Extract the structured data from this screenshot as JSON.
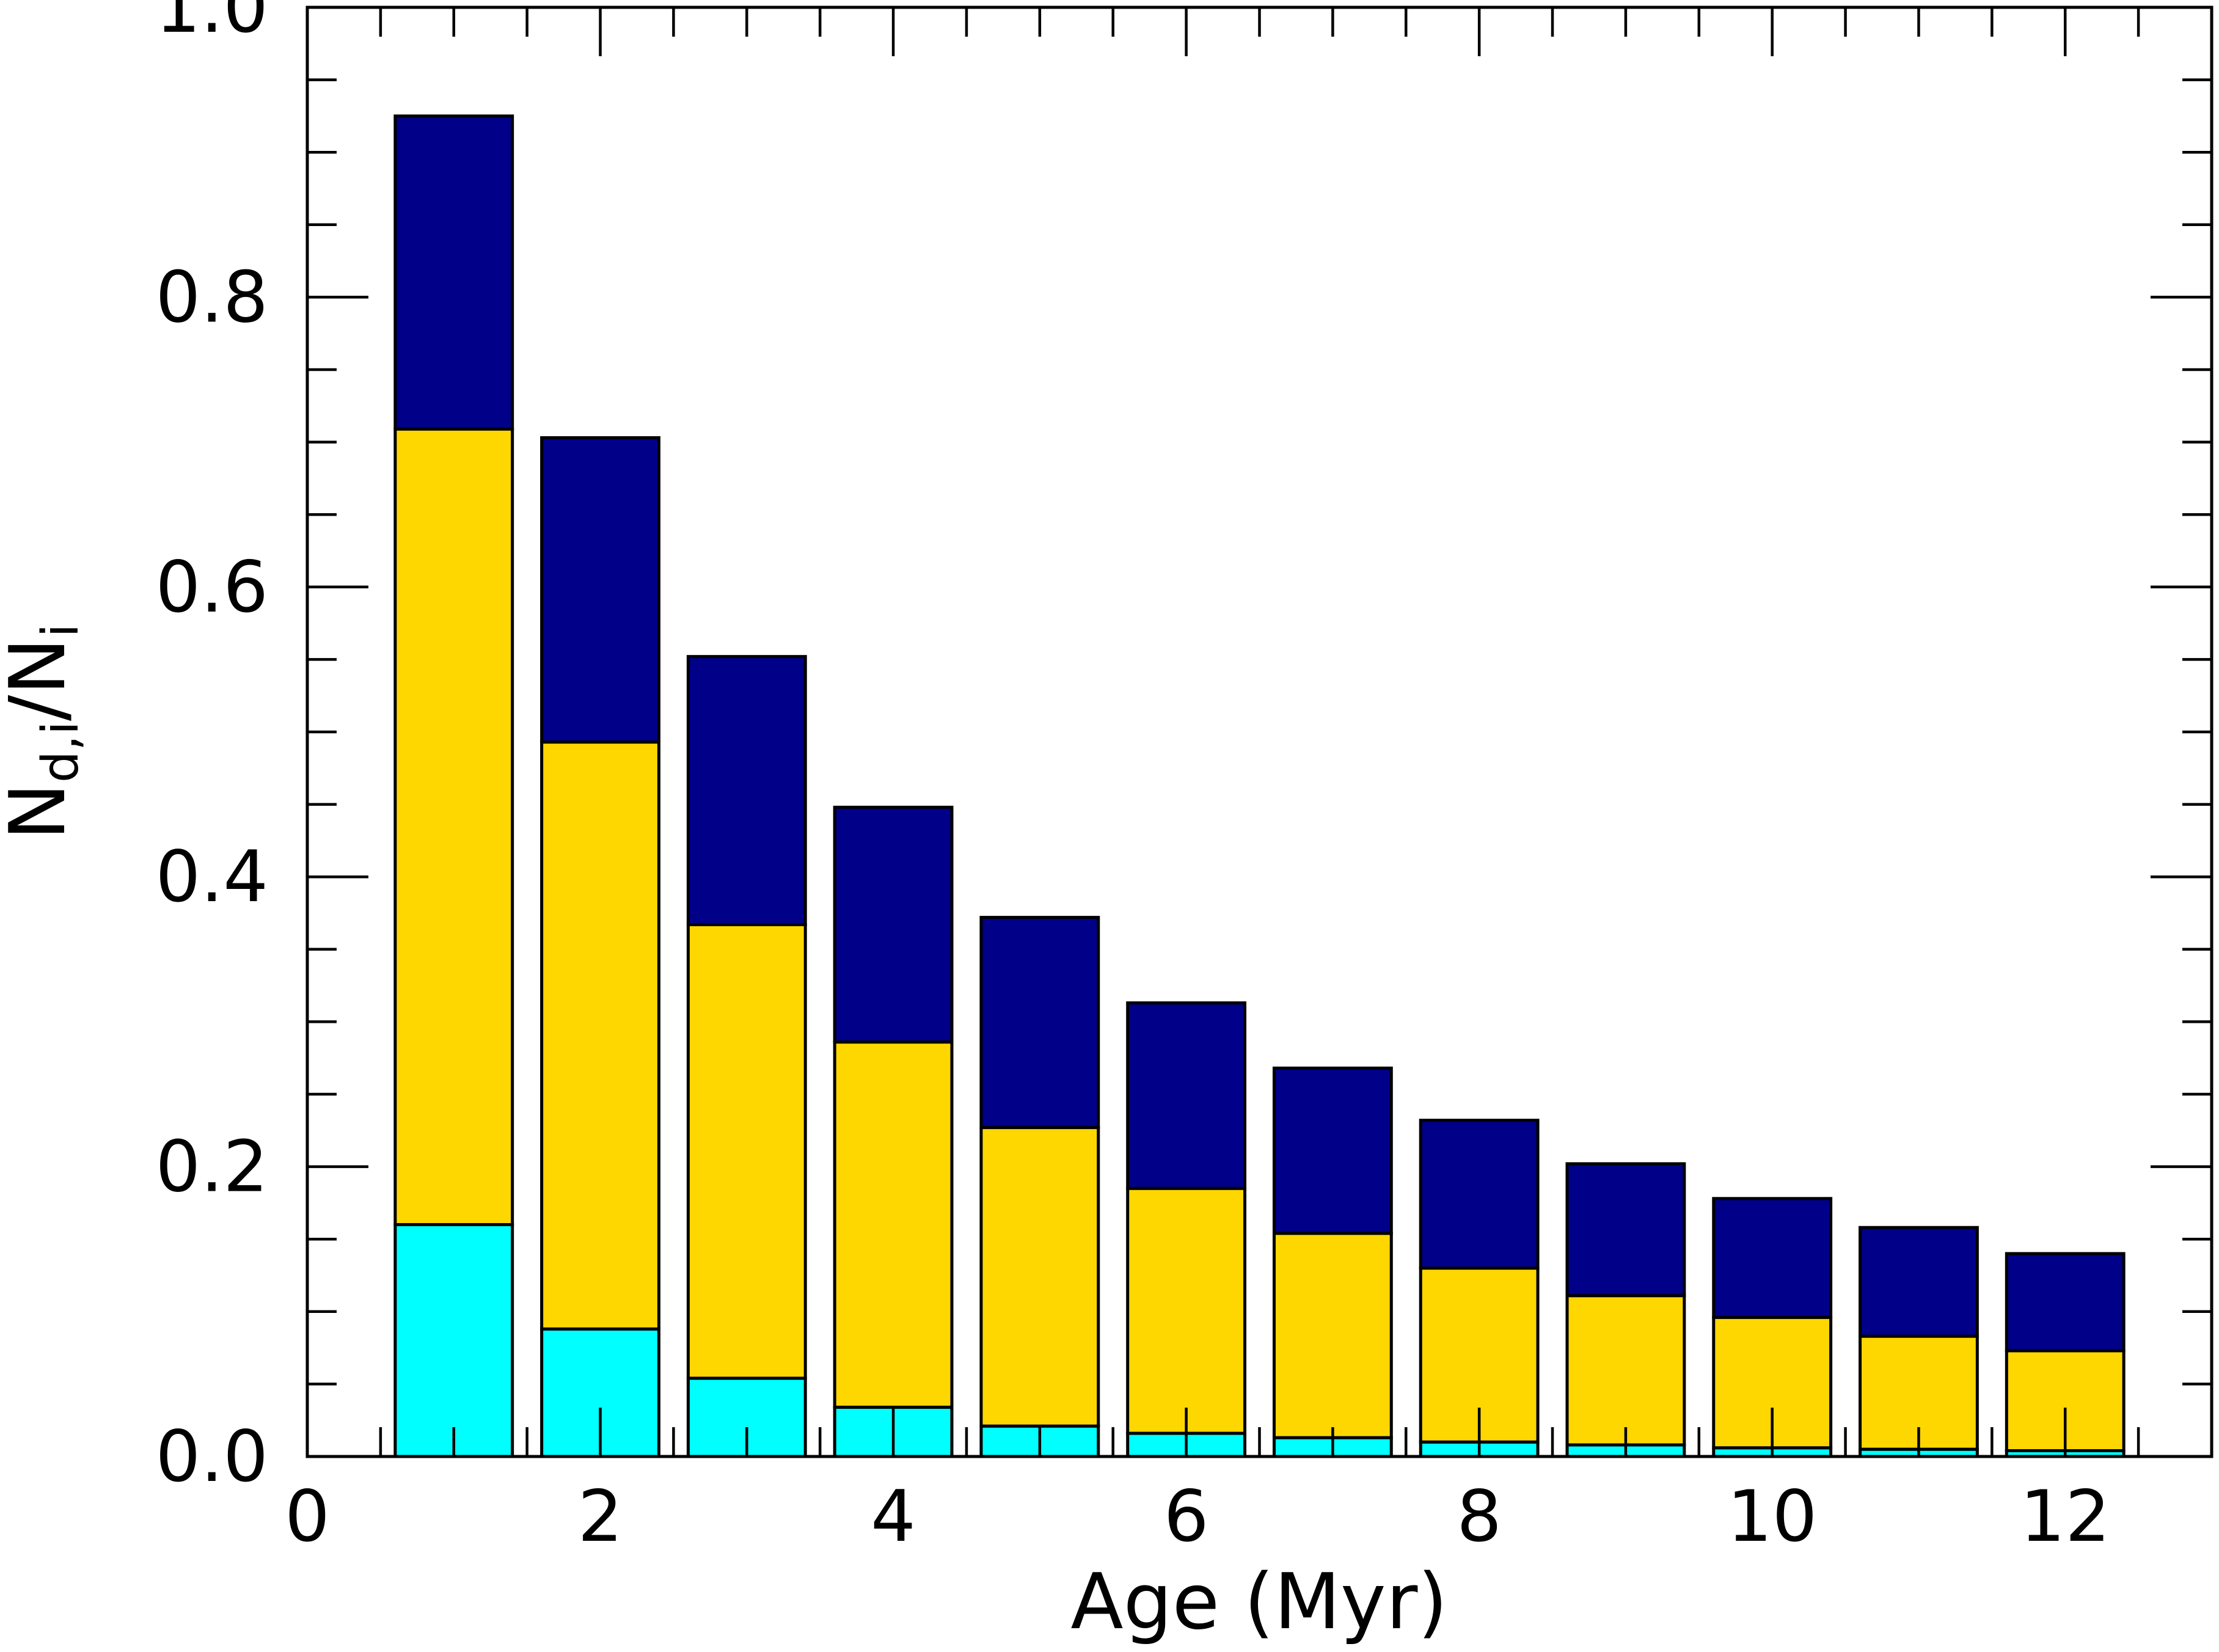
{
  "chart_data": {
    "type": "bar",
    "stacked": true,
    "title": "",
    "xlabel": "Age (Myr)",
    "ylabel_main": "N",
    "ylabel_sub1": "d,i",
    "ylabel_mid": "/N",
    "ylabel_sub2": "i",
    "xlim": [
      0,
      13
    ],
    "ylim": [
      0,
      1.0
    ],
    "x_ticks": [
      "0",
      "2",
      "4",
      "6",
      "8",
      "10",
      "12"
    ],
    "y_ticks": [
      "0.0",
      "0.2",
      "0.4",
      "0.6",
      "0.8",
      "1.0"
    ],
    "categories": [
      1,
      2,
      3,
      4,
      5,
      6,
      7,
      8,
      9,
      10,
      11,
      12
    ],
    "bar_width": 0.8,
    "series": [
      {
        "name": "cyan",
        "color": "#00FFFF",
        "values": [
          0.16,
          0.088,
          0.054,
          0.034,
          0.021,
          0.016,
          0.013,
          0.01,
          0.008,
          0.006,
          0.005,
          0.004
        ]
      },
      {
        "name": "yellow",
        "color": "#FFD700",
        "values": [
          0.549,
          0.405,
          0.313,
          0.252,
          0.206,
          0.169,
          0.141,
          0.12,
          0.103,
          0.09,
          0.078,
          0.069
        ]
      },
      {
        "name": "navy",
        "color": "#000088",
        "values": [
          0.216,
          0.21,
          0.185,
          0.162,
          0.145,
          0.128,
          0.114,
          0.102,
          0.091,
          0.082,
          0.075,
          0.067
        ]
      }
    ]
  }
}
